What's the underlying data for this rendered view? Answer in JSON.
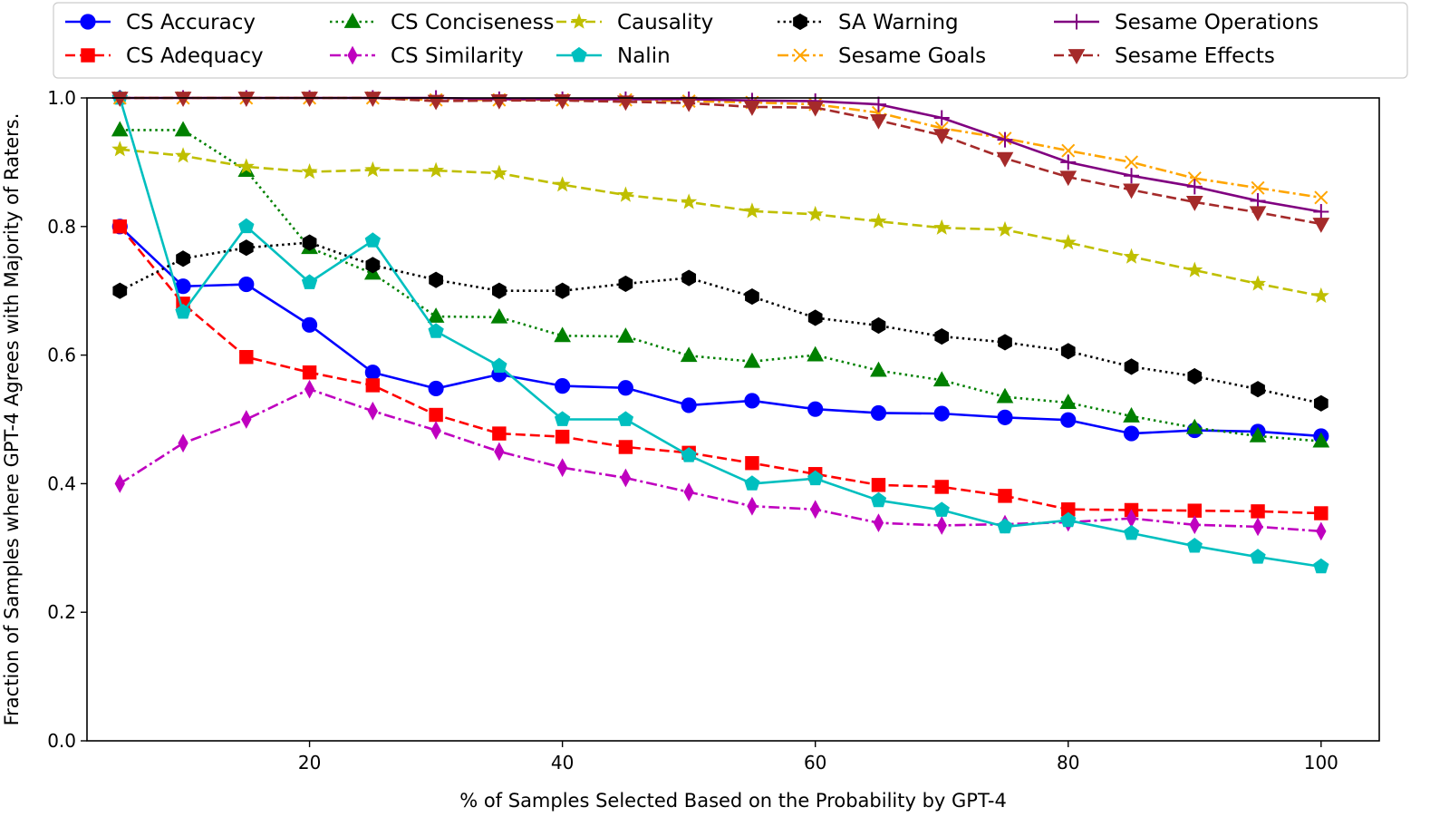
{
  "chart_data": {
    "type": "line",
    "title": "",
    "xlabel": "% of Samples Selected Based on the Probability by GPT-4",
    "ylabel": "Fraction of Samples where GPT-4 Agrees with Majority of Raters.",
    "xlim": [
      2.4,
      104.6
    ],
    "ylim": [
      0.0,
      1.0
    ],
    "xticks": [
      20,
      40,
      60,
      80,
      100
    ],
    "yticks": [
      0.0,
      0.2,
      0.4,
      0.6,
      0.8,
      1.0
    ],
    "xtick_labels": [
      "20",
      "40",
      "60",
      "80",
      "100"
    ],
    "ytick_labels": [
      "0.0",
      "0.2",
      "0.4",
      "0.6",
      "0.8",
      "1.0"
    ],
    "grid": false,
    "legend_position": "top",
    "x": [
      5,
      10,
      15,
      20,
      25,
      30,
      35,
      40,
      45,
      50,
      55,
      60,
      65,
      70,
      75,
      80,
      85,
      90,
      95,
      100
    ],
    "series": [
      {
        "name": "CS Accuracy",
        "color": "#0000ff",
        "dash": "solid",
        "marker": "circle",
        "values": [
          0.8,
          0.707,
          0.71,
          0.647,
          0.573,
          0.548,
          0.57,
          0.552,
          0.549,
          0.522,
          0.529,
          0.516,
          0.51,
          0.509,
          0.503,
          0.499,
          0.478,
          0.483,
          0.481,
          0.474
        ]
      },
      {
        "name": "CS Adequacy",
        "color": "#ff0000",
        "dash": "dashed",
        "marker": "square",
        "values": [
          0.8,
          0.68,
          0.597,
          0.573,
          0.553,
          0.507,
          0.478,
          0.473,
          0.457,
          0.448,
          0.432,
          0.415,
          0.398,
          0.395,
          0.381,
          0.36,
          0.359,
          0.358,
          0.357,
          0.354
        ]
      },
      {
        "name": "CS Conciseness",
        "color": "#008000",
        "dash": "dotted",
        "marker": "triangle-up",
        "values": [
          0.95,
          0.95,
          0.887,
          0.767,
          0.727,
          0.66,
          0.659,
          0.63,
          0.629,
          0.599,
          0.59,
          0.6,
          0.576,
          0.561,
          0.535,
          0.526,
          0.505,
          0.487,
          0.474,
          0.466
        ]
      },
      {
        "name": "CS Similarity",
        "color": "#bf00bf",
        "dash": "dashdot",
        "marker": "thin-diamond",
        "values": [
          0.4,
          0.463,
          0.5,
          0.547,
          0.513,
          0.483,
          0.45,
          0.425,
          0.409,
          0.387,
          0.365,
          0.36,
          0.339,
          0.335,
          0.337,
          0.34,
          0.346,
          0.336,
          0.333,
          0.326
        ]
      },
      {
        "name": "Causality",
        "color": "#bfbf00",
        "dash": "dashed",
        "marker": "star",
        "values": [
          0.92,
          0.91,
          0.893,
          0.885,
          0.888,
          0.887,
          0.883,
          0.865,
          0.849,
          0.838,
          0.824,
          0.819,
          0.808,
          0.798,
          0.795,
          0.775,
          0.753,
          0.732,
          0.711,
          0.692
        ]
      },
      {
        "name": "Nalin",
        "color": "#00bfbf",
        "dash": "solid",
        "marker": "pentagon",
        "values": [
          1.0,
          0.667,
          0.8,
          0.713,
          0.778,
          0.637,
          0.583,
          0.5,
          0.5,
          0.444,
          0.4,
          0.408,
          0.374,
          0.359,
          0.333,
          0.343,
          0.323,
          0.303,
          0.286,
          0.271
        ]
      },
      {
        "name": "SA Warning",
        "color": "#000000",
        "dash": "dotted",
        "marker": "hexagon",
        "values": [
          0.7,
          0.75,
          0.767,
          0.775,
          0.74,
          0.717,
          0.7,
          0.7,
          0.711,
          0.72,
          0.691,
          0.658,
          0.646,
          0.629,
          0.62,
          0.606,
          0.582,
          0.567,
          0.547,
          0.525
        ]
      },
      {
        "name": "Sesame Goals",
        "color": "#ffa500",
        "dash": "dashdot",
        "marker": "x",
        "values": [
          1.0,
          1.0,
          1.0,
          1.0,
          1.0,
          0.997,
          0.997,
          0.997,
          0.997,
          0.995,
          0.993,
          0.99,
          0.977,
          0.953,
          0.937,
          0.918,
          0.9,
          0.875,
          0.86,
          0.845
        ]
      },
      {
        "name": "Sesame Operations",
        "color": "#800080",
        "dash": "solid",
        "marker": "plus",
        "values": [
          1.0,
          1.0,
          1.0,
          1.0,
          1.0,
          1.0,
          0.998,
          0.998,
          0.998,
          0.998,
          0.996,
          0.995,
          0.99,
          0.969,
          0.935,
          0.9,
          0.879,
          0.862,
          0.84,
          0.823
        ]
      },
      {
        "name": "Sesame Effects",
        "color": "#a52a2a",
        "dash": "dashed",
        "marker": "triangle-down",
        "values": [
          1.0,
          1.0,
          1.0,
          1.0,
          1.0,
          0.995,
          0.996,
          0.996,
          0.994,
          0.992,
          0.986,
          0.985,
          0.965,
          0.942,
          0.906,
          0.877,
          0.857,
          0.838,
          0.822,
          0.804
        ]
      }
    ]
  }
}
